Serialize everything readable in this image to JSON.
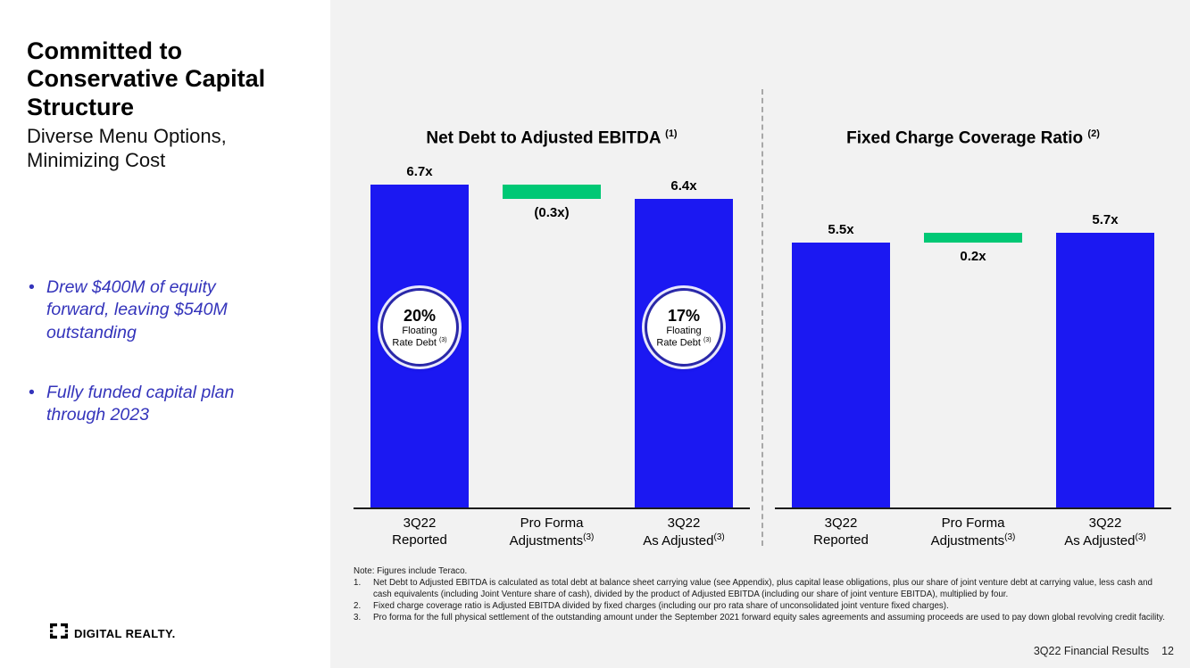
{
  "sidebar": {
    "title": "Committed to Conservative Capital Structure",
    "subtitle": "Diverse Menu Options, Minimizing Cost",
    "bullets": [
      "Drew $400M of equity forward, leaving $540M outstanding",
      "Fully funded capital plan through 2023"
    ],
    "logo_text": "DIGITAL REALTY."
  },
  "colors": {
    "bar_blue": "#1b18f2",
    "bar_green": "#00c875",
    "bullet_text": "#3434bb",
    "panel_bg": "#f2f2f2",
    "badge_ring": "#2a28a8"
  },
  "chart_data": [
    {
      "type": "bar",
      "title": "Net Debt to Adjusted EBITDA",
      "title_sup": "(1)",
      "unit": "x",
      "ylim": [
        0,
        7.05
      ],
      "grid": false,
      "bars": [
        {
          "category": [
            "3Q22",
            "Reported"
          ],
          "category_sup": "",
          "base": 0,
          "value": 6.7,
          "label": "6.7x",
          "label_pos": "above",
          "color": "bar_blue"
        },
        {
          "category": [
            "Pro Forma",
            "Adjustments"
          ],
          "category_sup": "(3)",
          "base": 6.7,
          "value": -0.3,
          "label": "(0.3x)",
          "label_pos": "below",
          "color": "bar_green"
        },
        {
          "category": [
            "3Q22",
            "As Adjusted"
          ],
          "category_sup": "(3)",
          "base": 0,
          "value": 6.4,
          "label": "6.4x",
          "label_pos": "above",
          "color": "bar_blue"
        }
      ],
      "badges": [
        {
          "bar": 0,
          "headline": "20%",
          "lines": [
            "Floating",
            "Rate Debt"
          ],
          "sup": "(3)"
        },
        {
          "bar": 2,
          "headline": "17%",
          "lines": [
            "Floating",
            "Rate Debt"
          ],
          "sup": "(3)"
        }
      ]
    },
    {
      "type": "bar",
      "title": "Fixed Charge Coverage Ratio",
      "title_sup": "(2)",
      "unit": "x",
      "ylim": [
        0,
        7.05
      ],
      "grid": false,
      "bars": [
        {
          "category": [
            "3Q22",
            "Reported"
          ],
          "category_sup": "",
          "base": 0,
          "value": 5.5,
          "label": "5.5x",
          "label_pos": "above",
          "color": "bar_blue"
        },
        {
          "category": [
            "Pro Forma",
            "Adjustments"
          ],
          "category_sup": "(3)",
          "base": 5.5,
          "value": 0.2,
          "label": "0.2x",
          "label_pos": "below",
          "color": "bar_green"
        },
        {
          "category": [
            "3Q22",
            "As Adjusted"
          ],
          "category_sup": "(3)",
          "base": 0,
          "value": 5.7,
          "label": "5.7x",
          "label_pos": "above",
          "color": "bar_blue"
        }
      ],
      "badges": []
    }
  ],
  "footer": {
    "note": "Note: Figures include Teraco.",
    "footnotes": [
      {
        "num": "1.",
        "text": "Net Debt to Adjusted EBITDA is calculated as total debt at balance sheet carrying value (see Appendix), plus capital lease obligations, plus our share of joint venture debt at carrying value, less cash and cash equivalents (including Joint Venture share of cash), divided by the product of Adjusted EBITDA (including our share of joint venture EBITDA), multiplied by four."
      },
      {
        "num": "2.",
        "text": "Fixed charge coverage ratio is Adjusted EBITDA divided by fixed charges (including our pro rata share of unconsolidated joint venture fixed charges)."
      },
      {
        "num": "3.",
        "text": "Pro forma for the full physical settlement of the outstanding amount under the September 2021 forward equity sales agreements and assuming proceeds are used to pay down global revolving credit facility."
      }
    ],
    "page_label": "3Q22 Financial Results",
    "page_number": "12"
  }
}
